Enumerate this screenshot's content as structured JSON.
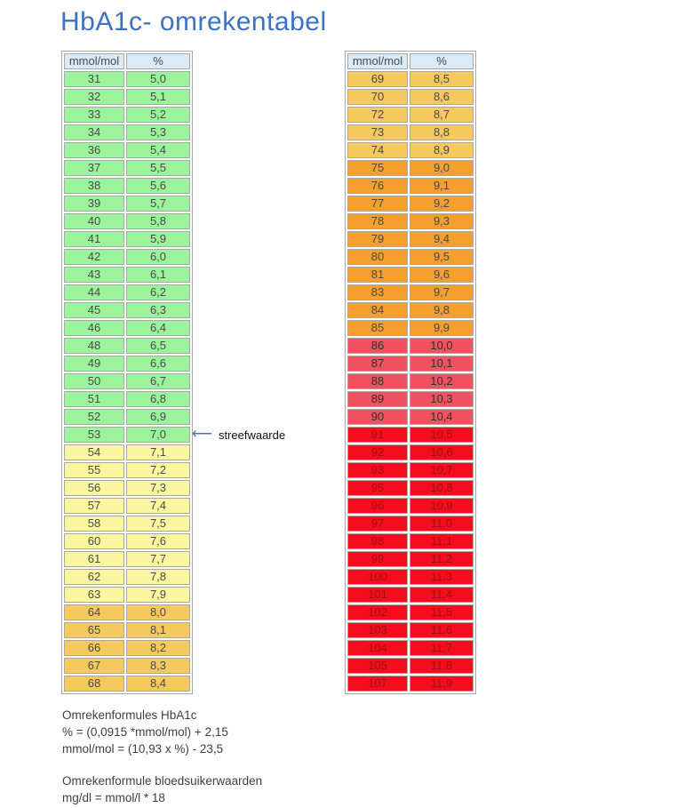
{
  "title": "HbA1c- omrekentabel",
  "columns": [
    "mmol/mol",
    "%"
  ],
  "colors": {
    "title_blue": "#3b72c1",
    "header_bg": "#d9eaf8",
    "band_green": "#9bf39b",
    "band_yellow": "#fbf79e",
    "band_orange_light": "#f6c95f",
    "band_orange_dark": "#f5a02c",
    "band_red_light": "#f1525f",
    "band_red_bright": "#f30d1d",
    "cell_text": "#4a4a4a",
    "cell_text_on_red_light": "#332e2e",
    "cell_text_on_red_bright": "#9e1016",
    "arrow_blue": "#4f6fb0",
    "border_gray": "#a8a8a8"
  },
  "left_table": {
    "rows": [
      {
        "mmol": "31",
        "pct": "5,0",
        "band": "green"
      },
      {
        "mmol": "32",
        "pct": "5,1",
        "band": "green"
      },
      {
        "mmol": "33",
        "pct": "5,2",
        "band": "green"
      },
      {
        "mmol": "34",
        "pct": "5,3",
        "band": "green"
      },
      {
        "mmol": "36",
        "pct": "5,4",
        "band": "green"
      },
      {
        "mmol": "37",
        "pct": "5,5",
        "band": "green"
      },
      {
        "mmol": "38",
        "pct": "5,6",
        "band": "green"
      },
      {
        "mmol": "39",
        "pct": "5,7",
        "band": "green"
      },
      {
        "mmol": "40",
        "pct": "5,8",
        "band": "green"
      },
      {
        "mmol": "41",
        "pct": "5,9",
        "band": "green"
      },
      {
        "mmol": "42",
        "pct": "6,0",
        "band": "green"
      },
      {
        "mmol": "43",
        "pct": "6,1",
        "band": "green"
      },
      {
        "mmol": "44",
        "pct": "6,2",
        "band": "green"
      },
      {
        "mmol": "45",
        "pct": "6,3",
        "band": "green"
      },
      {
        "mmol": "46",
        "pct": "6,4",
        "band": "green"
      },
      {
        "mmol": "48",
        "pct": "6,5",
        "band": "green"
      },
      {
        "mmol": "49",
        "pct": "6,6",
        "band": "green"
      },
      {
        "mmol": "50",
        "pct": "6,7",
        "band": "green"
      },
      {
        "mmol": "51",
        "pct": "6,8",
        "band": "green"
      },
      {
        "mmol": "52",
        "pct": "6,9",
        "band": "green"
      },
      {
        "mmol": "53",
        "pct": "7,0",
        "band": "green"
      },
      {
        "mmol": "54",
        "pct": "7,1",
        "band": "yellow"
      },
      {
        "mmol": "55",
        "pct": "7,2",
        "band": "yellow"
      },
      {
        "mmol": "56",
        "pct": "7,3",
        "band": "yellow"
      },
      {
        "mmol": "57",
        "pct": "7,4",
        "band": "yellow"
      },
      {
        "mmol": "58",
        "pct": "7,5",
        "band": "yellow"
      },
      {
        "mmol": "60",
        "pct": "7,6",
        "band": "yellow"
      },
      {
        "mmol": "61",
        "pct": "7,7",
        "band": "yellow"
      },
      {
        "mmol": "62",
        "pct": "7,8",
        "band": "yellow"
      },
      {
        "mmol": "63",
        "pct": "7,9",
        "band": "yellow"
      },
      {
        "mmol": "64",
        "pct": "8,0",
        "band": "orange_light"
      },
      {
        "mmol": "65",
        "pct": "8,1",
        "band": "orange_light"
      },
      {
        "mmol": "66",
        "pct": "8,2",
        "band": "orange_light"
      },
      {
        "mmol": "67",
        "pct": "8,3",
        "band": "orange_light"
      },
      {
        "mmol": "68",
        "pct": "8,4",
        "band": "orange_light"
      }
    ]
  },
  "right_table": {
    "rows": [
      {
        "mmol": "69",
        "pct": "8,5",
        "band": "orange_light"
      },
      {
        "mmol": "70",
        "pct": "8,6",
        "band": "orange_light"
      },
      {
        "mmol": "72",
        "pct": "8,7",
        "band": "orange_light"
      },
      {
        "mmol": "73",
        "pct": "8,8",
        "band": "orange_light"
      },
      {
        "mmol": "74",
        "pct": "8,9",
        "band": "orange_light"
      },
      {
        "mmol": "75",
        "pct": "9,0",
        "band": "orange_dark"
      },
      {
        "mmol": "76",
        "pct": "9,1",
        "band": "orange_dark"
      },
      {
        "mmol": "77",
        "pct": "9,2",
        "band": "orange_dark"
      },
      {
        "mmol": "78",
        "pct": "9,3",
        "band": "orange_dark"
      },
      {
        "mmol": "79",
        "pct": "9,4",
        "band": "orange_dark"
      },
      {
        "mmol": "80",
        "pct": "9,5",
        "band": "orange_dark"
      },
      {
        "mmol": "81",
        "pct": "9,6",
        "band": "orange_dark"
      },
      {
        "mmol": "83",
        "pct": "9,7",
        "band": "orange_dark"
      },
      {
        "mmol": "84",
        "pct": "9,8",
        "band": "orange_dark"
      },
      {
        "mmol": "85",
        "pct": "9,9",
        "band": "orange_dark"
      },
      {
        "mmol": "86",
        "pct": "10,0",
        "band": "red_light"
      },
      {
        "mmol": "87",
        "pct": "10,1",
        "band": "red_light"
      },
      {
        "mmol": "88",
        "pct": "10,2",
        "band": "red_light"
      },
      {
        "mmol": "89",
        "pct": "10,3",
        "band": "red_light"
      },
      {
        "mmol": "90",
        "pct": "10,4",
        "band": "red_light"
      },
      {
        "mmol": "91",
        "pct": "10,5",
        "band": "red_bright"
      },
      {
        "mmol": "92",
        "pct": "10,6",
        "band": "red_bright"
      },
      {
        "mmol": "93",
        "pct": "10,7",
        "band": "red_bright"
      },
      {
        "mmol": "95",
        "pct": "10,8",
        "band": "red_bright"
      },
      {
        "mmol": "96",
        "pct": "10,9",
        "band": "red_bright"
      },
      {
        "mmol": "97",
        "pct": "11,0",
        "band": "red_bright"
      },
      {
        "mmol": "98",
        "pct": "11,1",
        "band": "red_bright"
      },
      {
        "mmol": "99",
        "pct": "11,2",
        "band": "red_bright"
      },
      {
        "mmol": "100",
        "pct": "11,3",
        "band": "red_bright"
      },
      {
        "mmol": "101",
        "pct": "11,4",
        "band": "red_bright"
      },
      {
        "mmol": "102",
        "pct": "11,5",
        "band": "red_bright"
      },
      {
        "mmol": "103",
        "pct": "11,6",
        "band": "red_bright"
      },
      {
        "mmol": "104",
        "pct": "11,7",
        "band": "red_bright"
      },
      {
        "mmol": "105",
        "pct": "11,8",
        "band": "red_bright"
      },
      {
        "mmol": "107",
        "pct": "11,9",
        "band": "red_bright"
      }
    ]
  },
  "annotation": {
    "arrow": "⟵",
    "label": "streefwaarde",
    "target_mmol": "53",
    "target_pct": "7,0"
  },
  "formulas": {
    "hba1c_heading": "Omrekenformules HbA1c",
    "hba1c_line1": "% = (0,0915 *mmol/mol) + 2,15",
    "hba1c_line2": "mmol/mol = (10,93 x %) - 23,5",
    "glucose_heading": "Omrekenformule bloedsuikerwaarden",
    "glucose_line1": "mg/dl = mmol/l * 18"
  }
}
